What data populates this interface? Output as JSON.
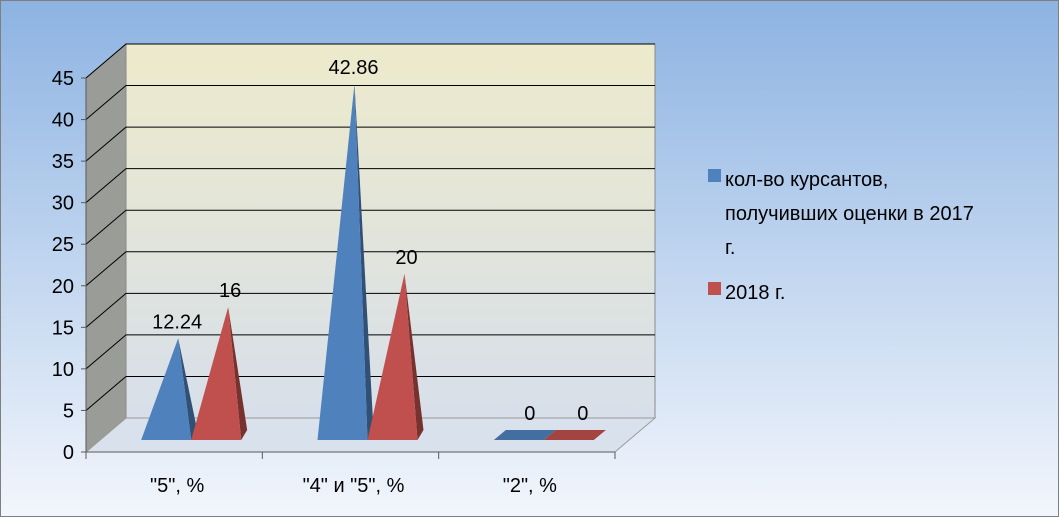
{
  "chart_data": {
    "type": "bar",
    "bar_shape": "pyramid",
    "style": "3d",
    "categories": [
      "\"5\", %",
      "\"4\" и \"5\", %",
      "\"2\", %"
    ],
    "series": [
      {
        "name": "кол-во курсантов, получивших оценки в 2017 г.",
        "legend_lines": [
          "кол-во курсантов,",
          "получивших оценки в 2017",
          "г."
        ],
        "color": "#4F81BD",
        "values": [
          12.24,
          42.86,
          0
        ],
        "labels": [
          "12.24",
          "42.86",
          "0"
        ]
      },
      {
        "name": "2018 г.",
        "legend_lines": [
          "2018 г."
        ],
        "color": "#C0504D",
        "values": [
          16,
          20,
          0
        ],
        "labels": [
          "16",
          "20",
          "0"
        ]
      }
    ],
    "ylim": [
      0,
      45
    ],
    "yticks": [
      "0",
      "5",
      "10",
      "15",
      "20",
      "25",
      "30",
      "35",
      "40",
      "45"
    ],
    "grid": true,
    "legend_position": "right",
    "title": "",
    "xlabel": "",
    "ylabel": ""
  },
  "colors": {
    "background_top": "#8DB3E2",
    "background_bottom": "#F2F6FC",
    "back_wall_top": "#EDEACB",
    "back_wall_bottom": "#D7DFEA",
    "side_wall": "#9A9C97",
    "floor": "#D8E1EC",
    "gridline": "#000000"
  }
}
